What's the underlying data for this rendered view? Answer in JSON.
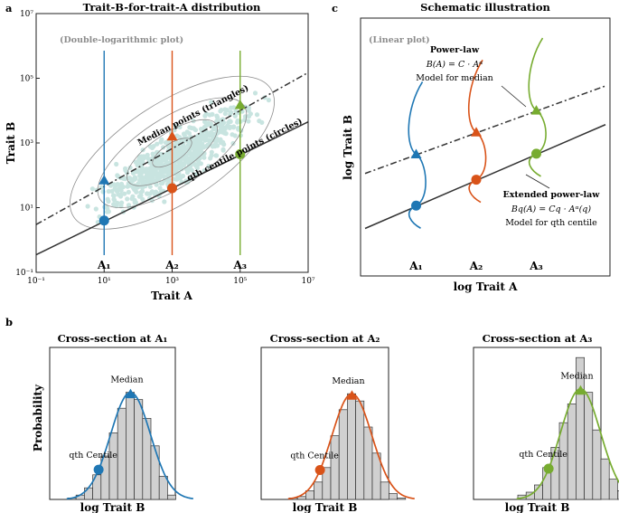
{
  "colors": {
    "blue": "#1f77b4",
    "orange": "#d95319",
    "green": "#77ac30",
    "scatter": "#9ccfc8",
    "contour": "#8c8c8c",
    "axes": "#222222",
    "bar_fill": "#d0d0d0"
  },
  "panel_letters": {
    "a": "a",
    "b": "b",
    "c": "c"
  },
  "panel_a": {
    "title": "Trait-B-for-trait-A distribution",
    "note": "(Double-logarithmic plot)",
    "xlabel": "Trait A",
    "ylabel": "Trait B",
    "x_ticks": [
      "10⁻¹",
      "10¹",
      "10³",
      "10⁵",
      "10⁷"
    ],
    "y_ticks": [
      "10⁻¹",
      "10¹",
      "10³",
      "10⁵",
      "10⁷"
    ],
    "A_labels": [
      "A₁",
      "A₂",
      "A₃"
    ],
    "median_label": "Median points (triangles)",
    "centile_label": "qth centile points (circles)"
  },
  "panel_c": {
    "title": "Schematic illustration",
    "note": "(Linear plot)",
    "xlabel": "log Trait A",
    "ylabel": "log Trait B",
    "A_labels": [
      "A₁",
      "A₂",
      "A₃"
    ],
    "powerlaw_title": "Power-law",
    "powerlaw_eq": "B(A) = C · Aᵅ",
    "powerlaw_desc": "Model for median",
    "extended_title": "Extended power-law",
    "extended_eq": "Bq(A) = Cq · Aᵅ(q)",
    "extended_desc": "Model for qth centile"
  },
  "panel_b": {
    "xlabel": "log Trait B",
    "ylabel": "Probability",
    "median_label": "Median",
    "centile_label": "qth Centile",
    "titles": [
      "Cross-section at A₁",
      "Cross-section at A₂",
      "Cross-section at A₃"
    ]
  },
  "chart_data": [
    {
      "type": "scatter",
      "title": "Trait-B-for-trait-A distribution",
      "xlabel": "Trait A",
      "ylabel": "Trait B",
      "xscale": "log",
      "yscale": "log",
      "xlim": [
        0.1,
        10000000
      ],
      "ylim": [
        0.1,
        10000000
      ],
      "series": [
        {
          "name": "Median points (triangles)",
          "marker": "triangle",
          "x": [
            10,
            1000,
            100000
          ],
          "y": [
            70,
            1600,
            15000
          ]
        },
        {
          "name": "qth centile points (circles)",
          "marker": "circle",
          "x": [
            10,
            1000,
            100000
          ],
          "y": [
            4,
            40,
            450
          ]
        }
      ],
      "fit_lines": [
        {
          "name": "median power-law",
          "style": "dash-dot",
          "x": [
            0.1,
            10000000
          ],
          "y": [
            3,
            150000
          ]
        },
        {
          "name": "centile power-law",
          "style": "solid",
          "x": [
            0.1,
            10000000
          ],
          "y": [
            0.35,
            4500
          ]
        }
      ],
      "cross_sections_at": [
        10,
        1000,
        100000
      ]
    },
    {
      "type": "line",
      "title": "Schematic illustration",
      "xlabel": "log Trait A",
      "ylabel": "log Trait B",
      "series": [
        {
          "name": "Power-law (median)",
          "style": "dash-dot",
          "x": [
            0,
            1
          ],
          "y": [
            0.37,
            0.8
          ]
        },
        {
          "name": "Extended power-law (qth centile)",
          "style": "solid",
          "x": [
            0,
            1
          ],
          "y": [
            0.1,
            0.61
          ]
        }
      ]
    },
    {
      "type": "bar",
      "title": "Cross-section at A₁",
      "xlabel": "log Trait B",
      "ylabel": "Probability",
      "values": [
        1,
        3,
        8,
        17,
        30,
        46,
        63,
        74,
        69,
        56,
        37,
        16,
        3
      ]
    },
    {
      "type": "bar",
      "title": "Cross-section at A₂",
      "xlabel": "log Trait B",
      "ylabel": "Probability",
      "values": [
        1,
        2,
        6,
        12,
        22,
        44,
        62,
        73,
        68,
        50,
        32,
        12,
        4,
        1
      ]
    },
    {
      "type": "bar",
      "title": "Cross-section at A₃",
      "xlabel": "log Trait B",
      "ylabel": "Probability",
      "values": [
        3,
        5,
        10,
        22,
        36,
        53,
        66,
        98,
        74,
        48,
        28,
        14,
        6
      ]
    }
  ]
}
